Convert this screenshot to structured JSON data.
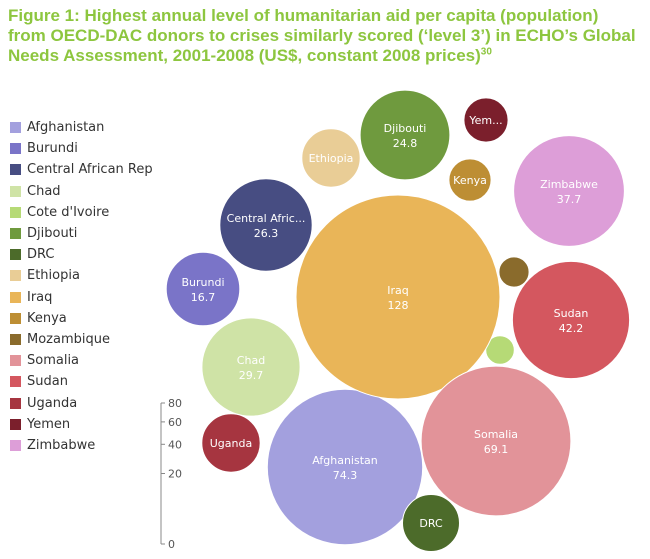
{
  "title": {
    "text": "Figure 1: Highest annual level of humanitarian aid per capita (population) from OECD-DAC donors to crises similarly scored (‘level 3’) in ECHO’s Global Needs Assessment, 2001-2008 (US$, constant 2008 prices)",
    "footnote": "30"
  },
  "chart_data": {
    "type": "bubble",
    "title": "Figure 1: Highest annual level of humanitarian aid per capita (population) from OECD-DAC donors to crises similarly scored (‘level 3’) in ECHO’s Global Needs Assessment, 2001-2008 (US$, constant 2008 prices)",
    "size_scale": {
      "ticks": [
        0,
        20,
        40,
        60,
        80
      ]
    },
    "series": [
      {
        "name": "Afghanistan",
        "label": "Afghanistan",
        "value": 74.3,
        "value_label": "74.3",
        "color": "#a3a0de"
      },
      {
        "name": "Burundi",
        "label": "Burundi",
        "value": 16.7,
        "value_label": "16.7",
        "color": "#7a74c8"
      },
      {
        "name": "Central African Rep",
        "label": "Central Afric...",
        "value": 26.3,
        "value_label": "26.3",
        "color": "#474d82"
      },
      {
        "name": "Chad",
        "label": "Chad",
        "value": 29.7,
        "value_label": "29.7",
        "color": "#cfe3a6"
      },
      {
        "name": "Cote d'Ivoire",
        "label": "",
        "value": 2.5,
        "value_label": "",
        "color": "#b6da76"
      },
      {
        "name": "Djibouti",
        "label": "Djibouti",
        "value": 24.8,
        "value_label": "24.8",
        "color": "#6f9a3e"
      },
      {
        "name": "DRC",
        "label": "DRC",
        "value": 10,
        "value_label": "",
        "color": "#4c6b2a"
      },
      {
        "name": "Ethiopia",
        "label": "Ethiopia",
        "value": 10.5,
        "value_label": "",
        "color": "#e9cd96"
      },
      {
        "name": "Iraq",
        "label": "Iraq",
        "value": 128,
        "value_label": "128",
        "color": "#e9b558"
      },
      {
        "name": "Kenya",
        "label": "Kenya",
        "value": 5.5,
        "value_label": "",
        "color": "#bd8e34"
      },
      {
        "name": "Mozambique",
        "label": "",
        "value": 2.8,
        "value_label": "",
        "color": "#8a6b2c"
      },
      {
        "name": "Somalia",
        "label": "Somalia",
        "value": 69.1,
        "value_label": "69.1",
        "color": "#e29399"
      },
      {
        "name": "Sudan",
        "label": "Sudan",
        "value": 42.2,
        "value_label": "42.2",
        "color": "#d4575f"
      },
      {
        "name": "Uganda",
        "label": "Uganda",
        "value": 10.5,
        "value_label": "",
        "color": "#a63540"
      },
      {
        "name": "Yemen",
        "label": "Yem...",
        "value": 6,
        "value_label": "",
        "color": "#7b1f2c"
      },
      {
        "name": "Zimbabwe",
        "label": "Zimbabwe",
        "value": 37.7,
        "value_label": "37.7",
        "color": "#dd9ed8"
      }
    ]
  }
}
